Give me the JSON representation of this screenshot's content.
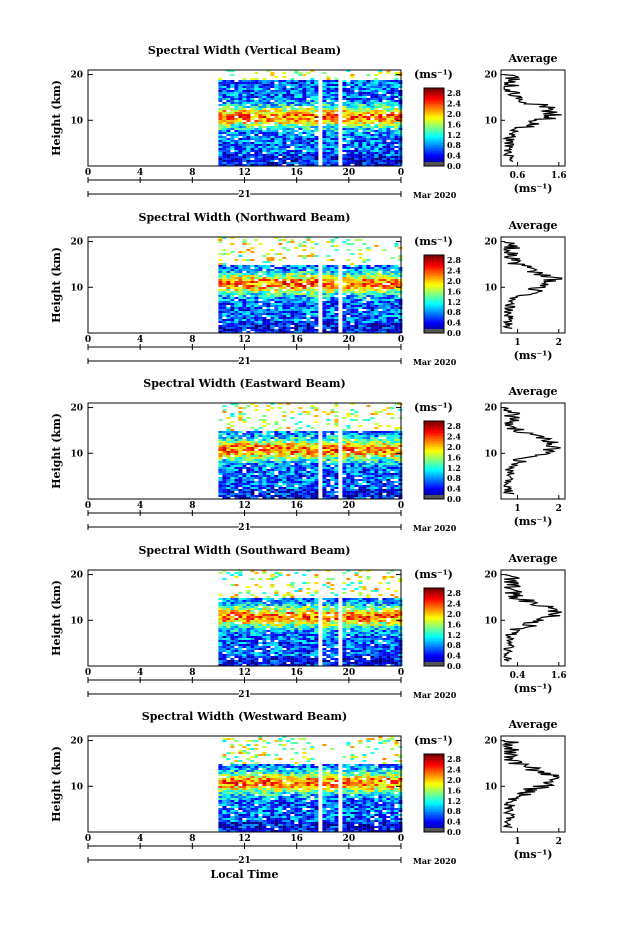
{
  "chart_data": [
    {
      "type": "heatmap",
      "title": "Spectral Width (Vertical Beam)",
      "ylabel": "Height (km)",
      "x_ticks": [
        "0",
        "4",
        "8",
        "12",
        "16",
        "20",
        "0"
      ],
      "y_ticks": [
        "20",
        "10"
      ],
      "date_label": "Mar 2020",
      "day_label": "21",
      "colorbar": {
        "unit": "(ms⁻¹)",
        "ticks": [
          "2.8",
          "2.4",
          "2.0",
          "1.6",
          "1.2",
          "0.8",
          "0.4",
          "0.0"
        ]
      },
      "data_start_hour": 10,
      "gaps_hours": [
        [
          17.6,
          17.9
        ],
        [
          19.2,
          19.5
        ]
      ],
      "echo_top_km": 19,
      "average": {
        "title": "Average",
        "xlabel": "(ms⁻¹)",
        "x_ticks": [
          "0.6",
          "1.6"
        ],
        "y_ticks": [
          "20",
          "10"
        ]
      }
    },
    {
      "type": "heatmap",
      "title": "Spectral Width (Northward Beam)",
      "ylabel": "Height (km)",
      "x_ticks": [
        "0",
        "4",
        "8",
        "12",
        "16",
        "20",
        "0"
      ],
      "y_ticks": [
        "20",
        "10"
      ],
      "date_label": "Mar 2020",
      "day_label": "21",
      "colorbar": {
        "unit": "(ms⁻¹)",
        "ticks": [
          "2.8",
          "2.4",
          "2.0",
          "1.6",
          "1.2",
          "0.8",
          "0.4",
          "0.0"
        ]
      },
      "data_start_hour": 10,
      "gaps_hours": [
        [
          17.6,
          17.9
        ],
        [
          19.2,
          19.5
        ]
      ],
      "echo_top_km": 15,
      "average": {
        "title": "Average",
        "xlabel": "(ms⁻¹)",
        "x_ticks": [
          "1",
          "2"
        ],
        "y_ticks": [
          "20",
          "10"
        ]
      }
    },
    {
      "type": "heatmap",
      "title": "Spectral Width (Eastward Beam)",
      "ylabel": "Height (km)",
      "x_ticks": [
        "0",
        "4",
        "8",
        "12",
        "16",
        "20",
        "0"
      ],
      "y_ticks": [
        "20",
        "10"
      ],
      "date_label": "Mar 2020",
      "day_label": "21",
      "colorbar": {
        "unit": "(ms⁻¹)",
        "ticks": [
          "2.8",
          "2.4",
          "2.0",
          "1.6",
          "1.2",
          "0.8",
          "0.4",
          "0.0"
        ]
      },
      "data_start_hour": 10,
      "gaps_hours": [
        [
          17.6,
          17.9
        ],
        [
          19.2,
          19.5
        ]
      ],
      "echo_top_km": 15,
      "average": {
        "title": "Average",
        "xlabel": "(ms⁻¹)",
        "x_ticks": [
          "1",
          "2"
        ],
        "y_ticks": [
          "20",
          "10"
        ]
      }
    },
    {
      "type": "heatmap",
      "title": "Spectral Width (Southward Beam)",
      "ylabel": "Height (km)",
      "x_ticks": [
        "0",
        "4",
        "8",
        "12",
        "16",
        "20",
        "0"
      ],
      "y_ticks": [
        "20",
        "10"
      ],
      "date_label": "Mar 2020",
      "day_label": "21",
      "colorbar": {
        "unit": "(ms⁻¹)",
        "ticks": [
          "2.8",
          "2.4",
          "2.0",
          "1.6",
          "1.2",
          "0.8",
          "0.4",
          "0.0"
        ]
      },
      "data_start_hour": 10,
      "gaps_hours": [
        [
          17.6,
          17.9
        ],
        [
          19.2,
          19.5
        ]
      ],
      "echo_top_km": 15,
      "average": {
        "title": "Average",
        "xlabel": "(ms⁻¹)",
        "x_ticks": [
          "0.4",
          "1.6"
        ],
        "y_ticks": [
          "20",
          "10"
        ]
      }
    },
    {
      "type": "heatmap",
      "title": "Spectral Width (Westward Beam)",
      "ylabel": "Height (km)",
      "x_ticks": [
        "0",
        "4",
        "8",
        "12",
        "16",
        "20",
        "0"
      ],
      "y_ticks": [
        "20",
        "10"
      ],
      "date_label": "Mar 2020",
      "day_label": "21",
      "xlabel": "Local Time",
      "colorbar": {
        "unit": "(ms⁻¹)",
        "ticks": [
          "2.8",
          "2.4",
          "2.0",
          "1.6",
          "1.2",
          "0.8",
          "0.4",
          "0.0"
        ]
      },
      "data_start_hour": 10,
      "gaps_hours": [
        [
          17.6,
          17.9
        ],
        [
          19.2,
          19.5
        ]
      ],
      "echo_top_km": 15,
      "average": {
        "title": "Average",
        "xlabel": "(ms⁻¹)",
        "x_ticks": [
          "1",
          "2"
        ],
        "y_ticks": [
          "20",
          "10"
        ]
      }
    }
  ]
}
